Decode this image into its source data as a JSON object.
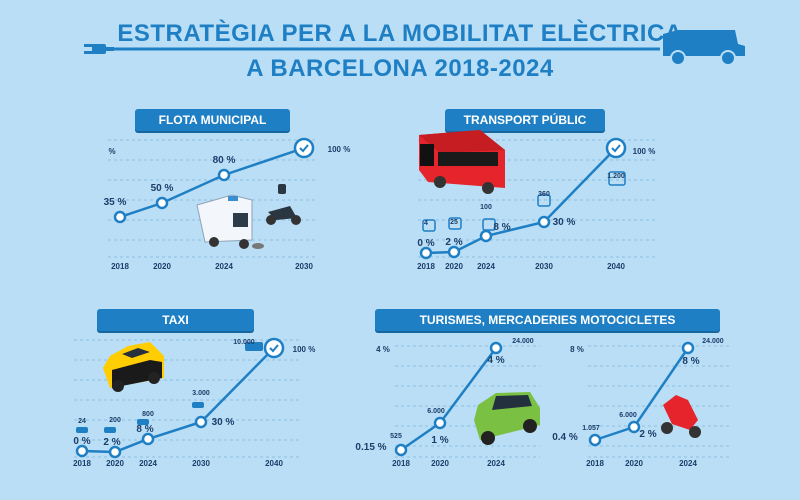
{
  "header": {
    "title_line1": "ESTRATÈGIA PER A LA MOBILITAT ELÈCTRICA",
    "title_line2": "A BARCELONA 2018-2024"
  },
  "colors": {
    "accent": "#1f7fc4",
    "background": "#b9def5",
    "label": "#1b3e6a"
  },
  "chart_data": [
    {
      "type": "line",
      "title": "FLOTA MUNICIPAL",
      "unit_label": "%",
      "x": [
        "2018",
        "2020",
        "2024",
        "2030"
      ],
      "values": [
        35,
        50,
        80,
        100
      ],
      "percent_labels": [
        "35 %",
        "50 %",
        "80 %",
        "100 %"
      ],
      "count_labels": []
    },
    {
      "type": "line",
      "title": "TRANSPORT PÚBLIC",
      "x": [
        "2018",
        "2020",
        "2024",
        "2030",
        "2040"
      ],
      "values": [
        0,
        2,
        8,
        30,
        100
      ],
      "percent_labels": [
        "0 %",
        "2 %",
        "8 %",
        "30 %",
        "100 %"
      ],
      "count_labels": [
        "4",
        "25",
        "100",
        "360",
        "1.200"
      ]
    },
    {
      "type": "line",
      "title": "TAXI",
      "x": [
        "2018",
        "2020",
        "2024",
        "2030",
        "2040"
      ],
      "values": [
        0,
        2,
        8,
        30,
        100
      ],
      "percent_labels": [
        "0 %",
        "2 %",
        "8 %",
        "30 %",
        "100 %"
      ],
      "count_labels": [
        "24",
        "200",
        "800",
        "3.000",
        "10.000"
      ]
    },
    {
      "type": "line",
      "title": "TURISMES, MERCADERIES MOTOCICLETES",
      "subtitle": "Turismes i mercaderies",
      "unit_label": "4 %",
      "x": [
        "2018",
        "2020",
        "2024"
      ],
      "values": [
        0.15,
        1,
        4
      ],
      "percent_labels": [
        "0.15 %",
        "1 %",
        "4 %"
      ],
      "count_labels": [
        "525",
        "6.000",
        "24.000"
      ]
    },
    {
      "type": "line",
      "subtitle": "Motocicletes",
      "unit_label": "8 %",
      "x": [
        "2018",
        "2020",
        "2024"
      ],
      "values": [
        0.4,
        2,
        8
      ],
      "percent_labels": [
        "0.4 %",
        "2 %",
        "8 %"
      ],
      "count_labels": [
        "1.057",
        "6.000",
        "24.000"
      ]
    }
  ]
}
